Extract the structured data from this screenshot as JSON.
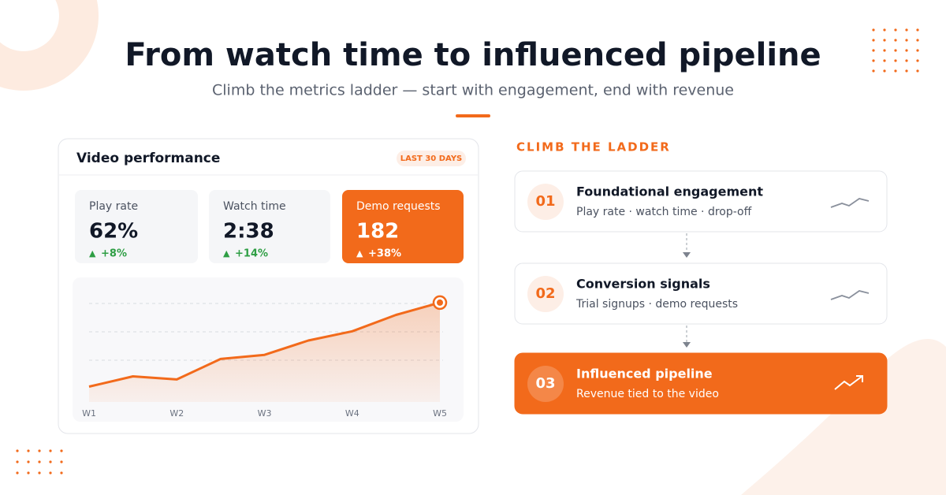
{
  "header": {
    "title": "From watch time to influenced pipeline",
    "subtitle": "Climb the metrics ladder — start with engagement, end with revenue"
  },
  "card": {
    "title": "Video performance",
    "badge": "LAST 30 DAYS",
    "metrics": [
      {
        "label": "Play rate",
        "value": "62%",
        "delta": "+8%"
      },
      {
        "label": "Watch time",
        "value": "2:38",
        "delta": "+14%"
      },
      {
        "label": "Demo requests",
        "value": "182",
        "delta": "+38%"
      }
    ],
    "chart_data": {
      "type": "line",
      "x": [
        1,
        1.5,
        2,
        2.5,
        3,
        3.5,
        4,
        4.5,
        5
      ],
      "values": [
        15,
        25,
        22,
        42,
        46,
        60,
        69,
        85,
        97
      ],
      "xlim": [
        1,
        5
      ],
      "ylim": [
        0,
        100
      ],
      "xticks": [
        {
          "value": 1,
          "label": "W1"
        },
        {
          "value": 2,
          "label": "W2"
        },
        {
          "value": 3,
          "label": "W3"
        },
        {
          "value": 4,
          "label": "W4"
        },
        {
          "value": 5,
          "label": "W5"
        }
      ],
      "color": "#f26a1b"
    }
  },
  "ladder": {
    "heading": "CLIMB THE LADDER",
    "steps": [
      {
        "number": "01",
        "title": "Foundational engagement",
        "subtitle": "Play rate · watch time · drop-off"
      },
      {
        "number": "02",
        "title": "Conversion signals",
        "subtitle": "Trial signups · demo requests"
      },
      {
        "number": "03",
        "title": "Influenced pipeline",
        "subtitle": "Revenue tied to the video"
      }
    ]
  }
}
